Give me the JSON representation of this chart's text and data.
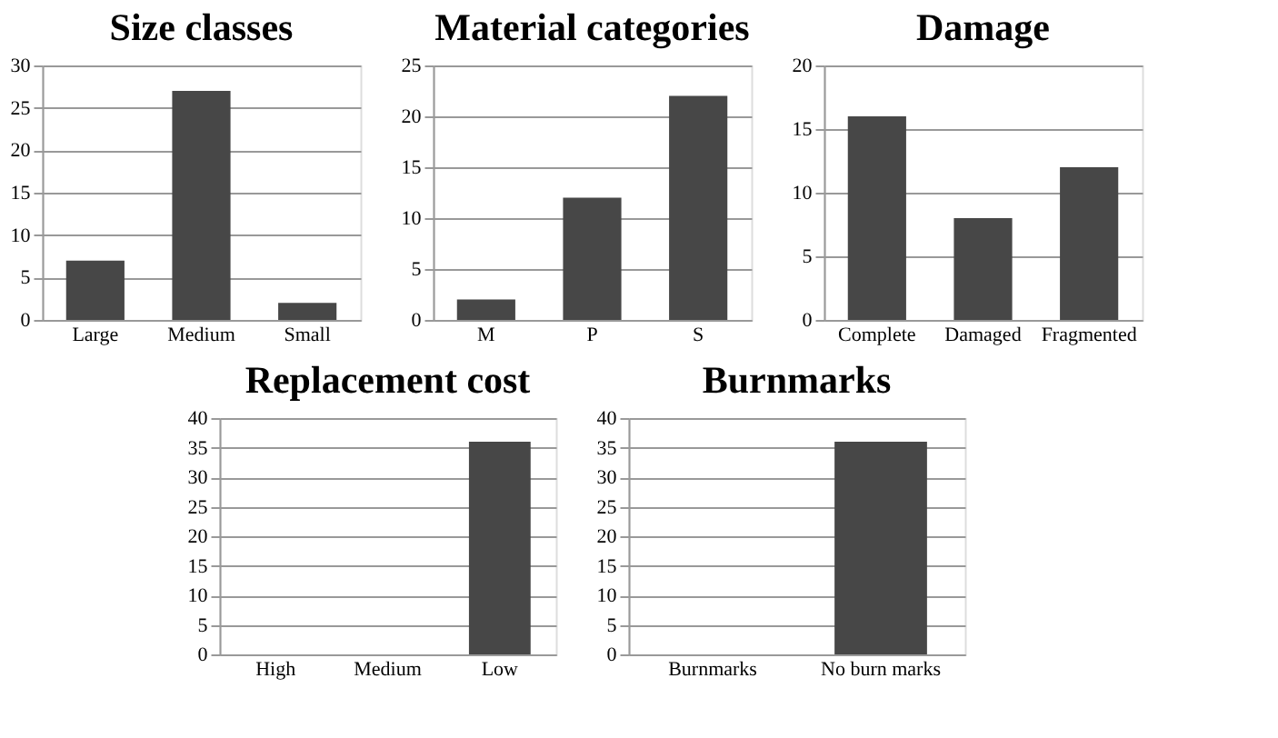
{
  "chart_data": [
    {
      "type": "bar",
      "title": "Size classes",
      "categories": [
        "Large",
        "Medium",
        "Small"
      ],
      "values": [
        7,
        27,
        2
      ],
      "color": "#474747",
      "ylim": [
        0,
        30
      ],
      "yticks": [
        0,
        5,
        10,
        15,
        20,
        25,
        30
      ],
      "grid": "y"
    },
    {
      "type": "bar",
      "title": "Material categories",
      "categories": [
        "M",
        "P",
        "S"
      ],
      "values": [
        2,
        12,
        22
      ],
      "color": "#474747",
      "ylim": [
        0,
        25
      ],
      "yticks": [
        0,
        5,
        10,
        15,
        20,
        25
      ],
      "grid": "y"
    },
    {
      "type": "bar",
      "title": "Damage",
      "categories": [
        "Complete",
        "Damaged",
        "Fragmented"
      ],
      "values": [
        16,
        8,
        12
      ],
      "color": "#474747",
      "ylim": [
        0,
        20
      ],
      "yticks": [
        0,
        5,
        10,
        15,
        20
      ],
      "grid": "y"
    },
    {
      "type": "bar",
      "title": "Replacement cost",
      "categories": [
        "High",
        "Medium",
        "Low"
      ],
      "values": [
        0,
        0,
        36
      ],
      "color": "#474747",
      "ylim": [
        0,
        40
      ],
      "yticks": [
        0,
        5,
        10,
        15,
        20,
        25,
        30,
        35,
        40
      ],
      "grid": "y"
    },
    {
      "type": "bar",
      "title": "Burnmarks",
      "categories": [
        "Burnmarks",
        "No burn marks"
      ],
      "values": [
        0,
        36
      ],
      "color": "#474747",
      "ylim": [
        0,
        40
      ],
      "yticks": [
        0,
        5,
        10,
        15,
        20,
        25,
        30,
        35,
        40
      ],
      "grid": "y"
    }
  ]
}
